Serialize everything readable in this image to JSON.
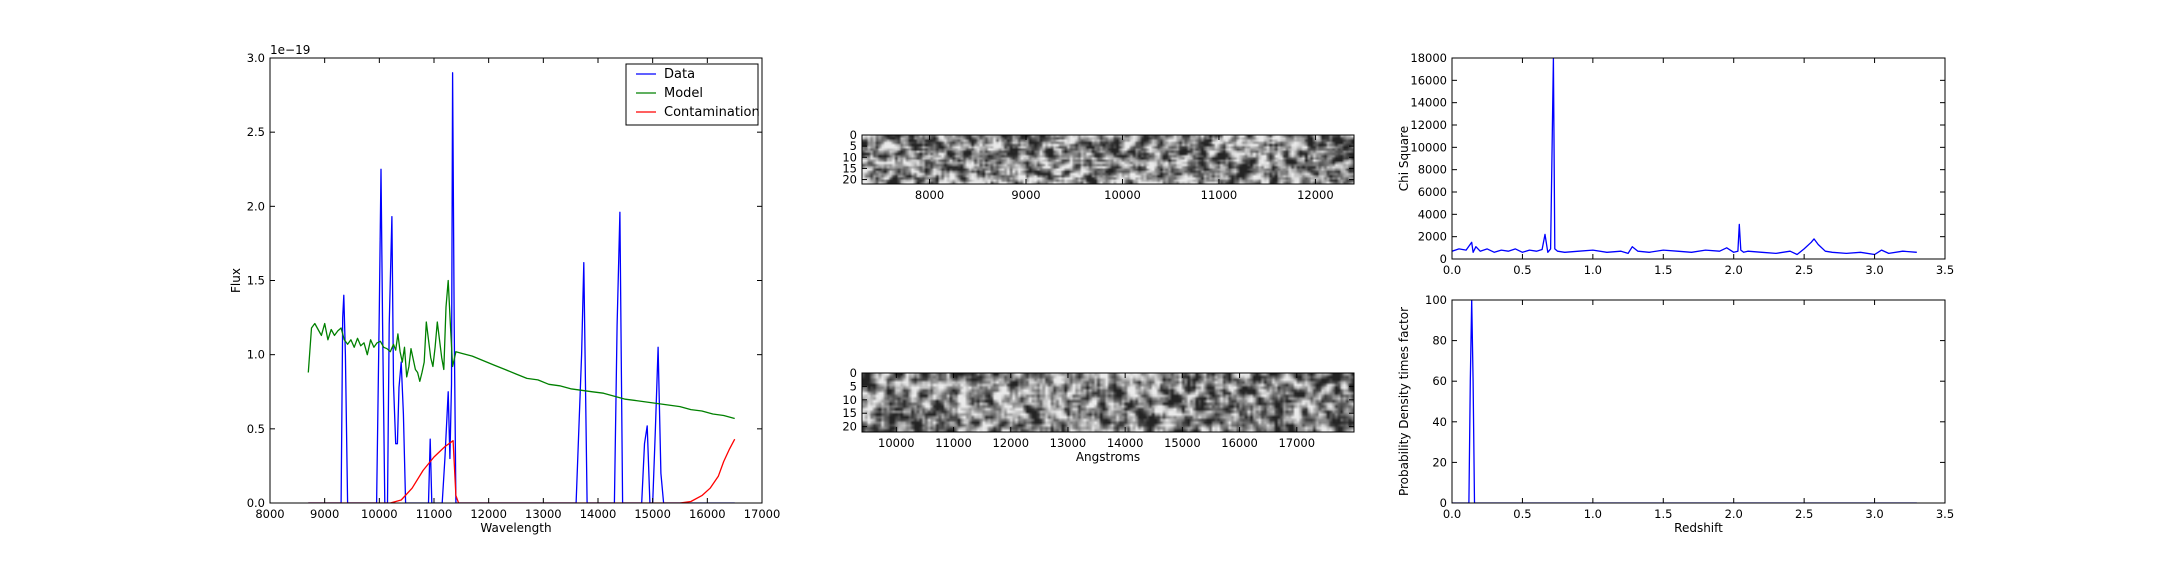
{
  "chart_data": [
    {
      "type": "line",
      "xlabel": "Wavelength",
      "ylabel": "Flux",
      "offset_text": "1e−19",
      "xlim": [
        8000,
        17000
      ],
      "ylim": [
        0,
        3.0
      ],
      "xticks": [
        8000,
        9000,
        10000,
        11000,
        12000,
        13000,
        14000,
        15000,
        16000,
        17000
      ],
      "yticks": [
        0.0,
        0.5,
        1.0,
        1.5,
        2.0,
        2.5,
        3.0
      ],
      "xtick_labels": [
        "8000",
        "9000",
        "10000",
        "11000",
        "12000",
        "13000",
        "14000",
        "15000",
        "16000",
        "17000"
      ],
      "ytick_labels": [
        "0.0",
        "0.5",
        "1.0",
        "1.5",
        "2.0",
        "2.5",
        "3.0"
      ],
      "legend": {
        "placement": "top-right",
        "entries": [
          "Data",
          "Model",
          "Contamination"
        ]
      },
      "series": [
        {
          "name": "Data",
          "color": "#0000ff",
          "x": [
            8700,
            9300,
            9330,
            9350,
            9380,
            9420,
            9800,
            9950,
            10000,
            10030,
            10060,
            10100,
            10150,
            10180,
            10230,
            10260,
            10300,
            10330,
            10360,
            10400,
            10440,
            10480,
            10520,
            10560,
            10700,
            10900,
            10930,
            10960,
            11000,
            11150,
            11200,
            11260,
            11290,
            11320,
            11340,
            11370,
            11400,
            11500,
            13500,
            13600,
            13700,
            13740,
            13800,
            14300,
            14350,
            14400,
            14450,
            14800,
            14850,
            14900,
            14950,
            15000,
            15050,
            15100,
            15150,
            15200,
            16500
          ],
          "y": [
            0.0,
            0.0,
            1.25,
            1.4,
            1.0,
            0.0,
            0.0,
            0.0,
            1.3,
            2.25,
            1.2,
            0.0,
            0.0,
            1.2,
            1.93,
            0.8,
            0.4,
            0.4,
            0.78,
            0.95,
            0.6,
            0.0,
            0.0,
            0.0,
            0.0,
            0.0,
            0.43,
            0.0,
            0.0,
            0.0,
            0.3,
            0.75,
            0.3,
            0.8,
            2.9,
            1.2,
            0.0,
            0.0,
            0.0,
            0.0,
            1.0,
            1.62,
            0.0,
            0.0,
            1.2,
            1.96,
            0.0,
            0.0,
            0.4,
            0.52,
            0.0,
            0.0,
            0.5,
            1.05,
            0.2,
            0.0,
            0.0
          ]
        },
        {
          "name": "Model",
          "color": "#008000",
          "x": [
            8700,
            8760,
            8820,
            8880,
            8940,
            9000,
            9060,
            9120,
            9180,
            9240,
            9300,
            9360,
            9420,
            9480,
            9540,
            9600,
            9660,
            9720,
            9780,
            9840,
            9900,
            9960,
            10020,
            10080,
            10140,
            10200,
            10260,
            10300,
            10340,
            10380,
            10420,
            10460,
            10500,
            10540,
            10580,
            10620,
            10660,
            10700,
            10740,
            10780,
            10820,
            10860,
            10900,
            10940,
            10980,
            11020,
            11060,
            11100,
            11140,
            11180,
            11220,
            11260,
            11300,
            11340,
            11400,
            11500,
            11700,
            11900,
            12100,
            12300,
            12500,
            12700,
            12900,
            13100,
            13300,
            13500,
            13700,
            13900,
            14100,
            14300,
            14500,
            14700,
            14900,
            15100,
            15300,
            15500,
            15700,
            15900,
            16100,
            16300,
            16500
          ],
          "y": [
            0.88,
            1.18,
            1.21,
            1.17,
            1.13,
            1.21,
            1.1,
            1.17,
            1.13,
            1.16,
            1.18,
            1.1,
            1.07,
            1.1,
            1.05,
            1.11,
            1.06,
            1.08,
            1.0,
            1.1,
            1.05,
            1.08,
            1.09,
            1.05,
            1.04,
            1.02,
            1.07,
            1.03,
            1.14,
            1.02,
            0.95,
            1.05,
            0.85,
            0.92,
            1.04,
            0.97,
            0.9,
            0.88,
            0.82,
            0.88,
            0.95,
            1.22,
            1.1,
            0.98,
            0.92,
            1.05,
            1.22,
            1.1,
            0.98,
            0.9,
            1.32,
            1.5,
            1.2,
            0.92,
            1.02,
            1.01,
            0.99,
            0.96,
            0.93,
            0.9,
            0.87,
            0.84,
            0.83,
            0.8,
            0.79,
            0.77,
            0.76,
            0.75,
            0.74,
            0.72,
            0.7,
            0.69,
            0.68,
            0.67,
            0.66,
            0.65,
            0.63,
            0.62,
            0.6,
            0.59,
            0.57
          ]
        },
        {
          "name": "Contamination",
          "color": "#ff0000",
          "x": [
            8700,
            10200,
            10400,
            10600,
            10800,
            11000,
            11200,
            11350,
            11400,
            11450,
            15500,
            15700,
            15900,
            16050,
            16200,
            16300,
            16400,
            16500
          ],
          "y": [
            0.0,
            0.0,
            0.02,
            0.1,
            0.22,
            0.31,
            0.38,
            0.42,
            0.05,
            0.0,
            0.0,
            0.01,
            0.05,
            0.1,
            0.18,
            0.28,
            0.36,
            0.43
          ]
        }
      ]
    },
    {
      "type": "heatmap",
      "xlim": [
        7300,
        12400
      ],
      "ylim": [
        22,
        0
      ],
      "xticks": [
        8000,
        9000,
        10000,
        11000,
        12000
      ],
      "yticks": [
        0,
        5,
        10,
        15,
        20
      ],
      "xtick_labels": [
        "8000",
        "9000",
        "10000",
        "11000",
        "12000"
      ],
      "ytick_labels": [
        "0",
        "5",
        "10",
        "15",
        "20"
      ],
      "colormap": "gray",
      "xlabel": ""
    },
    {
      "type": "heatmap",
      "xlim": [
        9400,
        18000
      ],
      "ylim": [
        22,
        0
      ],
      "xticks": [
        10000,
        11000,
        12000,
        13000,
        14000,
        15000,
        16000,
        17000
      ],
      "yticks": [
        0,
        5,
        10,
        15,
        20
      ],
      "xtick_labels": [
        "10000",
        "11000",
        "12000",
        "13000",
        "14000",
        "15000",
        "16000",
        "17000"
      ],
      "ytick_labels": [
        "0",
        "5",
        "10",
        "15",
        "20"
      ],
      "colormap": "gray",
      "xlabel": "Angstroms"
    },
    {
      "type": "line",
      "xlabel": "",
      "ylabel": "Chi Square",
      "xlim": [
        0,
        3.5
      ],
      "ylim": [
        0,
        18000
      ],
      "xticks": [
        0.0,
        0.5,
        1.0,
        1.5,
        2.0,
        2.5,
        3.0,
        3.5
      ],
      "yticks": [
        0,
        2000,
        4000,
        6000,
        8000,
        10000,
        12000,
        14000,
        16000,
        18000
      ],
      "xtick_labels": [
        "0.0",
        "0.5",
        "1.0",
        "1.5",
        "2.0",
        "2.5",
        "3.0",
        "3.5"
      ],
      "ytick_labels": [
        "0",
        "2000",
        "4000",
        "6000",
        "8000",
        "10000",
        "12000",
        "14000",
        "16000",
        "18000"
      ],
      "series": [
        {
          "color": "#0000ff",
          "x": [
            0.0,
            0.05,
            0.1,
            0.14,
            0.15,
            0.17,
            0.2,
            0.25,
            0.3,
            0.35,
            0.4,
            0.45,
            0.5,
            0.55,
            0.6,
            0.64,
            0.66,
            0.68,
            0.7,
            0.72,
            0.73,
            0.75,
            0.8,
            0.9,
            1.0,
            1.1,
            1.2,
            1.25,
            1.28,
            1.32,
            1.4,
            1.5,
            1.6,
            1.7,
            1.8,
            1.9,
            1.95,
            2.0,
            2.03,
            2.04,
            2.05,
            2.07,
            2.1,
            2.2,
            2.3,
            2.4,
            2.45,
            2.5,
            2.55,
            2.57,
            2.6,
            2.65,
            2.7,
            2.8,
            2.9,
            3.0,
            3.05,
            3.1,
            3.2,
            3.3
          ],
          "y": [
            700,
            900,
            800,
            1500,
            600,
            1100,
            700,
            900,
            600,
            800,
            700,
            900,
            600,
            800,
            700,
            850,
            2200,
            600,
            900,
            18000,
            900,
            700,
            600,
            700,
            800,
            600,
            700,
            500,
            1100,
            700,
            600,
            800,
            700,
            600,
            800,
            700,
            1000,
            600,
            700,
            3100,
            800,
            600,
            700,
            600,
            500,
            700,
            400,
            900,
            1500,
            1800,
            1300,
            700,
            600,
            500,
            600,
            400,
            800,
            500,
            700,
            600
          ]
        }
      ]
    },
    {
      "type": "line",
      "xlabel": "Redshift",
      "ylabel": "Probability Density times factor",
      "xlim": [
        0,
        3.5
      ],
      "ylim": [
        0,
        100
      ],
      "xticks": [
        0.0,
        0.5,
        1.0,
        1.5,
        2.0,
        2.5,
        3.0,
        3.5
      ],
      "yticks": [
        0,
        20,
        40,
        60,
        80,
        100
      ],
      "xtick_labels": [
        "0.0",
        "0.5",
        "1.0",
        "1.5",
        "2.0",
        "2.5",
        "3.0",
        "3.5"
      ],
      "ytick_labels": [
        "0",
        "20",
        "40",
        "60",
        "80",
        "100"
      ],
      "series": [
        {
          "color": "#0000ff",
          "x": [
            0.0,
            0.12,
            0.13,
            0.14,
            0.15,
            0.16,
            3.3
          ],
          "y": [
            0,
            0,
            60,
            100,
            60,
            0,
            0
          ]
        }
      ]
    }
  ]
}
